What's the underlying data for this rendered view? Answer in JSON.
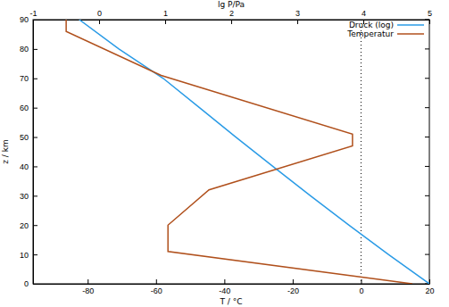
{
  "chart_data": {
    "type": "line",
    "x_label": "T / °C",
    "x2_label": "lg P/Pa",
    "y_label": "z / km",
    "xlim": [
      -96,
      20
    ],
    "xticks": [
      -80,
      -60,
      -40,
      -20,
      0,
      20
    ],
    "x2lim": [
      -1,
      5
    ],
    "x2ticks": [
      -1,
      0,
      1,
      2,
      3,
      4,
      5
    ],
    "ylim": [
      0,
      90
    ],
    "yticks": [
      0,
      10,
      20,
      30,
      40,
      50,
      60,
      70,
      80,
      90
    ],
    "grid": false,
    "legend": "upper right",
    "series": [
      {
        "name": "Druck (log)",
        "color": "#2a9be6",
        "axis": "x2",
        "x": [
          5.0,
          4.38,
          3.78,
          3.2,
          2.63,
          2.07,
          1.52,
          0.97,
          0.3,
          -0.3
        ],
        "values": [
          0,
          10,
          20,
          30,
          40,
          50,
          60,
          70,
          80,
          90
        ]
      },
      {
        "name": "Temperatur",
        "color": "#b0501c",
        "x": [
          15,
          -56.5,
          -56.5,
          -44.5,
          -2.5,
          -2.5,
          -58.5,
          -86.3,
          -86.3
        ],
        "values": [
          0,
          11,
          20,
          32,
          47,
          51,
          71,
          86,
          90
        ]
      }
    ]
  }
}
